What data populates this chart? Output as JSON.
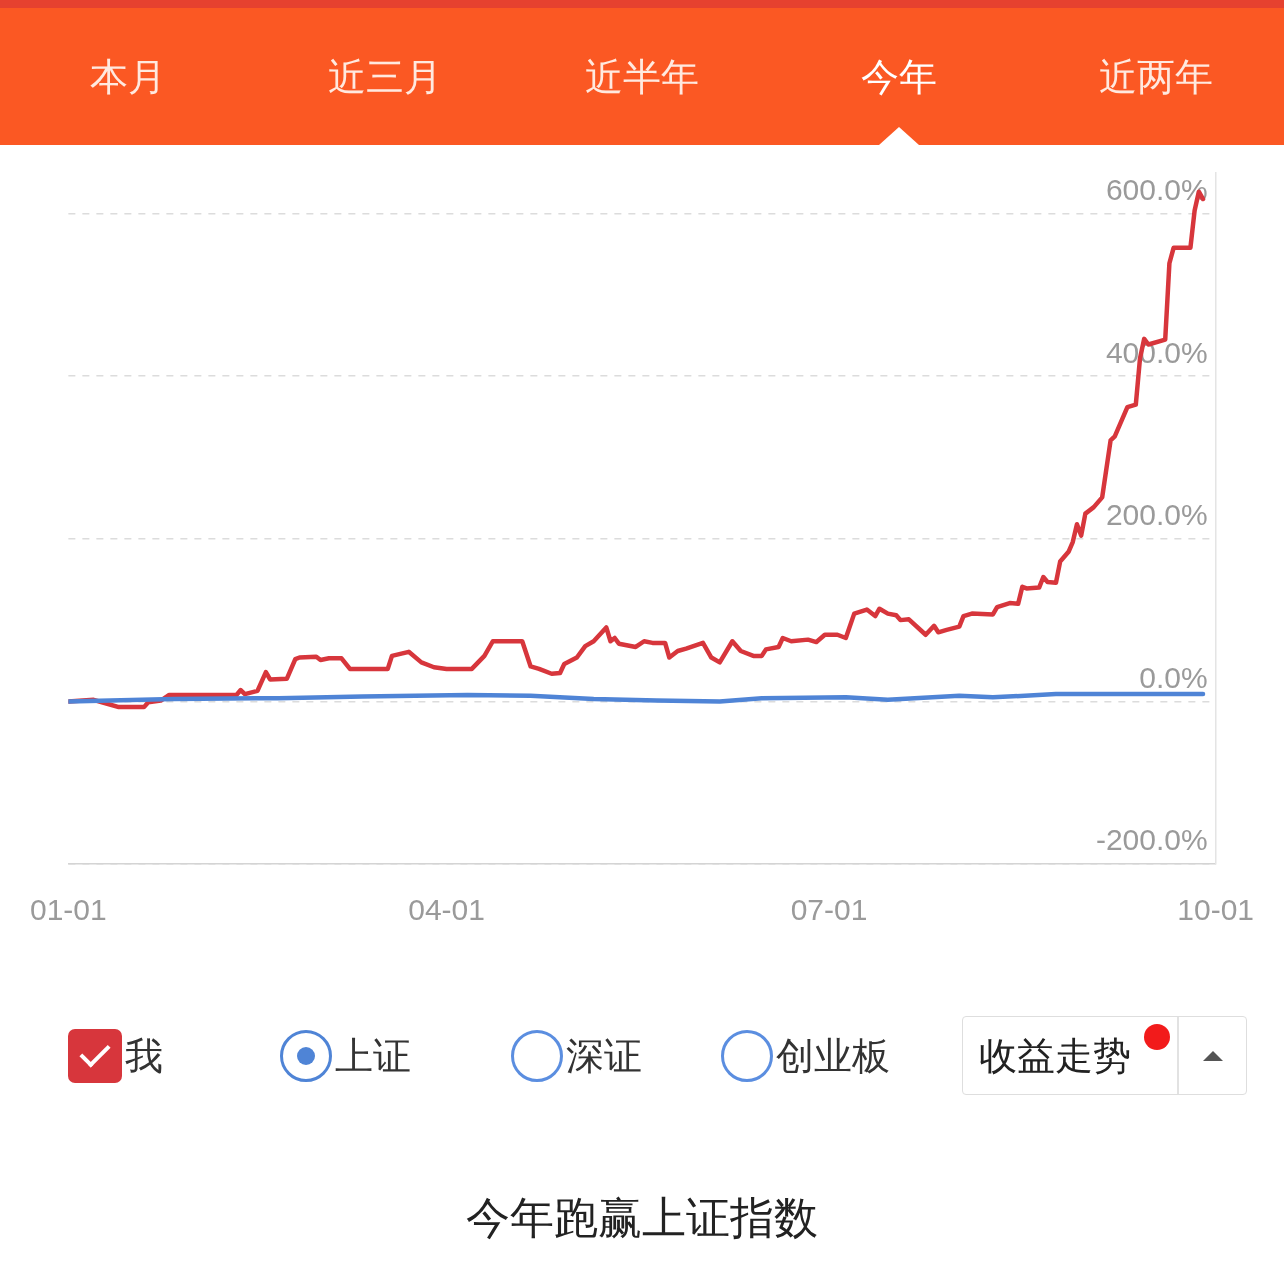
{
  "chart_data": {
    "type": "line",
    "title": "今年跑赢上证指数",
    "annotations": [
      "本月",
      "近三月",
      "近半年",
      "今年",
      "近两年",
      "深证",
      "创业板",
      "收益走势"
    ],
    "series": [
      {
        "name": "我",
        "color": "#d7363c",
        "x": [
          "--01-01",
          "--01-07",
          "--01-09",
          "--01-13",
          "--01-19",
          "--01-20",
          "--01-23",
          "--01-25",
          "--02-10",
          "--02-11",
          "--02-12",
          "--02-15",
          "--02-17",
          "--02-18",
          "--02-22",
          "--02-24",
          "--02-25",
          "--03-01",
          "--03-02",
          "--03-04",
          "--03-07",
          "--03-09",
          "--03-18",
          "--03-19",
          "--03-23",
          "--03-26",
          "--03-29",
          "--04-01",
          "--04-07",
          "--04-10",
          "--04-12",
          "--04-19",
          "--04-21",
          "--04-23",
          "--04-26",
          "--04-28",
          "--04-29",
          "--05-02",
          "--05-04",
          "--05-06",
          "--05-09",
          "--05-10",
          "--05-11",
          "--05-12",
          "--05-16",
          "--05-18",
          "--05-20",
          "--05-23",
          "--05-24",
          "--05-26",
          "--05-28",
          "--06-01",
          "--06-03",
          "--06-05",
          "--06-08",
          "--06-10",
          "--06-13",
          "--06-15",
          "--06-16",
          "--06-19",
          "--06-20",
          "--06-22",
          "--06-26",
          "--06-28",
          "--06-30",
          "--07-03",
          "--07-05",
          "--07-07",
          "--07-10",
          "--07-12",
          "--07-13",
          "--07-15",
          "--07-17",
          "--07-18",
          "--07-20",
          "--07-24",
          "--07-26",
          "--07-27",
          "--07-29",
          "--08-01",
          "--08-02",
          "--08-04",
          "--08-09",
          "--08-10",
          "--08-13",
          "--08-15",
          "--08-16",
          "--08-17",
          "--08-20",
          "--08-21",
          "--08-22",
          "--08-24",
          "--08-25",
          "--08-27",
          "--08-28",
          "--08-29",
          "--08-30",
          "--08-31",
          "--09-02",
          "--09-04",
          "--09-06",
          "--09-07",
          "--09-10",
          "--09-12",
          "--09-13",
          "--09-14",
          "--09-15",
          "--09-19",
          "--09-20",
          "--09-21",
          "--09-25",
          "--09-26",
          "--09-27",
          "--09-28"
        ],
        "values": [
          0,
          2,
          -1,
          -7,
          -7,
          -1,
          1,
          8,
          8,
          14,
          9,
          13,
          36,
          27,
          28,
          52,
          54,
          55,
          51,
          53,
          53,
          40,
          40,
          56,
          61,
          48,
          42,
          40,
          40,
          56,
          74,
          74,
          43,
          40,
          34,
          35,
          46,
          54,
          68,
          74,
          91,
          74,
          78,
          71,
          67,
          74,
          72,
          72,
          54,
          62,
          65,
          72,
          54,
          48,
          74,
          62,
          56,
          56,
          64,
          67,
          78,
          74,
          76,
          73,
          82,
          82,
          78,
          108,
          113,
          105,
          114,
          108,
          106,
          100,
          101,
          82,
          93,
          85,
          88,
          92,
          105,
          108,
          107,
          116,
          121,
          120,
          141,
          139,
          140,
          153,
          147,
          146,
          172,
          184,
          196,
          218,
          204,
          231,
          239,
          251,
          321,
          326,
          362,
          365,
          422,
          446,
          439,
          445,
          539,
          558,
          558,
          604,
          627,
          618
        ]
      },
      {
        "name": "上证",
        "color": "#4f84d6",
        "x": [
          "--01-01",
          "--01-11",
          "--01-26",
          "--02-20",
          "--03-12",
          "--04-06",
          "--04-21",
          "--05-06",
          "--05-21",
          "--06-05",
          "--06-15",
          "--07-05",
          "--07-15",
          "--08-01",
          "--08-09",
          "--08-24",
          "--09-28"
        ],
        "values": [
          0,
          1,
          3,
          4,
          6,
          8,
          7,
          3,
          1,
          0,
          4,
          5,
          2,
          7,
          5,
          9,
          9
        ]
      }
    ],
    "xlim": [
      "--01-01",
      "--10-01"
    ],
    "xticks": [
      {
        "value": "--01-01",
        "label": "01-01"
      },
      {
        "value": "--04-01",
        "label": "04-01"
      },
      {
        "value": "--07-01",
        "label": "07-01"
      },
      {
        "value": "--10-01",
        "label": "10-01"
      }
    ],
    "ylim": [
      -200,
      650
    ],
    "yticks": [
      {
        "value": -200,
        "label": "-200.0%"
      },
      {
        "value": 0,
        "label": "0.0%"
      },
      {
        "value": 200,
        "label": "200.0%"
      },
      {
        "value": 400,
        "label": "400.0%"
      },
      {
        "value": 600,
        "label": "600.0%"
      }
    ],
    "grid": "y",
    "legend": "bottom"
  }
}
